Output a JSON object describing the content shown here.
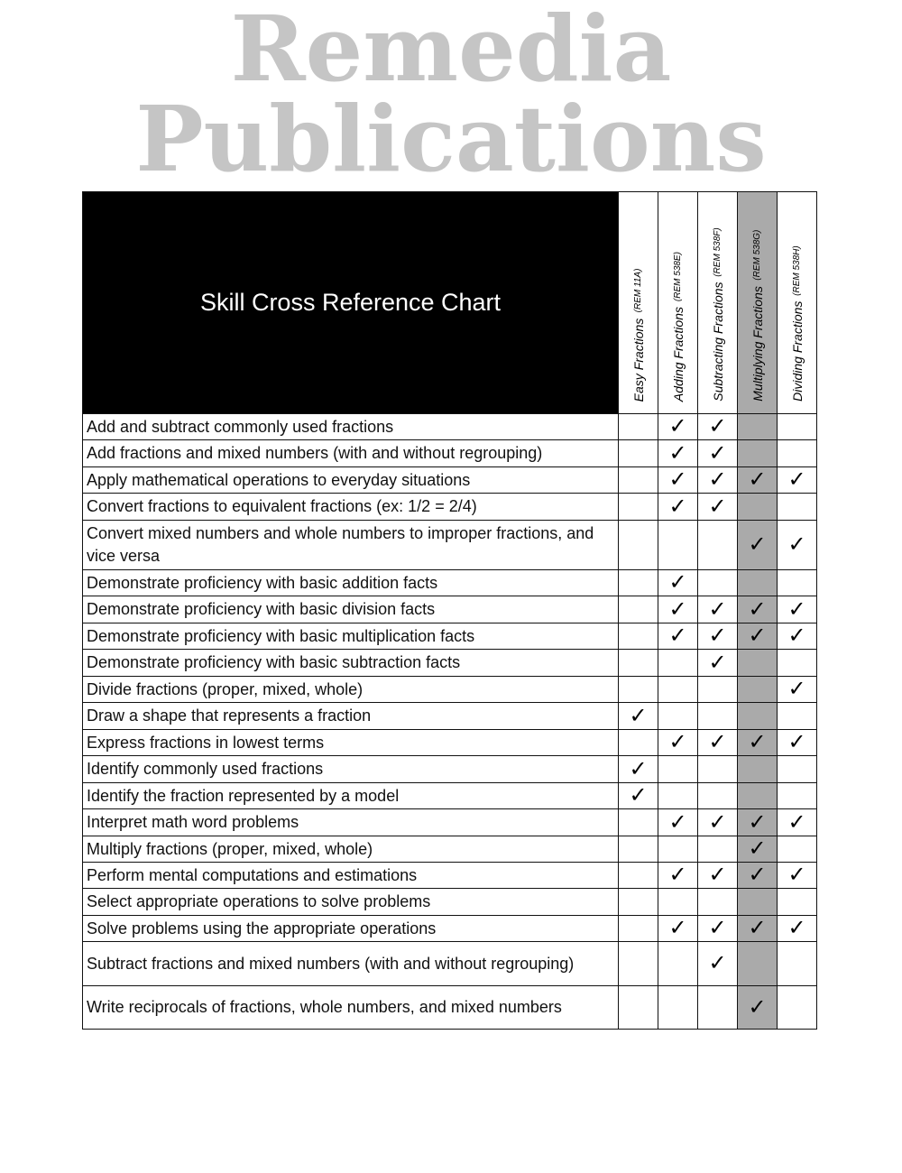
{
  "title": "Skill Cross Reference Chart",
  "watermark": "Remedia Publications",
  "columns": [
    {
      "name": "Easy Fractions",
      "code": "(REM 11A)",
      "shaded": false
    },
    {
      "name": "Adding Fractions",
      "code": "(REM 538E)",
      "shaded": false
    },
    {
      "name": "Subtracting Fractions",
      "code": "(REM 538F)",
      "shaded": false
    },
    {
      "name": "Multiplying Fractions",
      "code": "(REM 538G)",
      "shaded": true
    },
    {
      "name": "Dividing Fractions",
      "code": "(REM 538H)",
      "shaded": false
    }
  ],
  "check_glyph": "✓",
  "colors": {
    "header_bg": "#000000",
    "shade": "#aaaaaa"
  },
  "rows": [
    {
      "skill": "Add and subtract commonly used fractions",
      "checks": [
        0,
        1,
        1,
        0,
        0
      ]
    },
    {
      "skill": "Add fractions and mixed numbers (with and without regrouping)",
      "checks": [
        0,
        1,
        1,
        0,
        0
      ]
    },
    {
      "skill": "Apply mathematical operations to everyday situations",
      "checks": [
        0,
        1,
        1,
        1,
        1
      ]
    },
    {
      "skill": "Convert fractions to equivalent fractions (ex: 1/2 = 2/4)",
      "checks": [
        0,
        1,
        1,
        0,
        0
      ]
    },
    {
      "skill": "Convert mixed numbers and whole numbers to improper fractions, and vice versa",
      "checks": [
        0,
        0,
        0,
        1,
        1
      ]
    },
    {
      "skill": "Demonstrate proficiency with basic addition facts",
      "checks": [
        0,
        1,
        0,
        0,
        0
      ]
    },
    {
      "skill": "Demonstrate proficiency with basic division facts",
      "checks": [
        0,
        1,
        1,
        1,
        1
      ]
    },
    {
      "skill": "Demonstrate proficiency with basic multiplication facts",
      "checks": [
        0,
        1,
        1,
        1,
        1
      ]
    },
    {
      "skill": "Demonstrate proficiency with basic subtraction facts",
      "checks": [
        0,
        0,
        1,
        0,
        0
      ]
    },
    {
      "skill": "Divide fractions (proper, mixed, whole)",
      "checks": [
        0,
        0,
        0,
        0,
        1
      ]
    },
    {
      "skill": "Draw a shape that represents a fraction",
      "checks": [
        1,
        0,
        0,
        0,
        0
      ]
    },
    {
      "skill": "Express fractions in lowest terms",
      "checks": [
        0,
        1,
        1,
        1,
        1
      ]
    },
    {
      "skill": "Identify commonly used fractions",
      "checks": [
        1,
        0,
        0,
        0,
        0
      ]
    },
    {
      "skill": "Identify the fraction represented by a model",
      "checks": [
        1,
        0,
        0,
        0,
        0
      ]
    },
    {
      "skill": "Interpret math word problems",
      "checks": [
        0,
        1,
        1,
        1,
        1
      ]
    },
    {
      "skill": "Multiply fractions (proper, mixed, whole)",
      "checks": [
        0,
        0,
        0,
        1,
        0
      ]
    },
    {
      "skill": "Perform mental computations and estimations",
      "checks": [
        0,
        1,
        1,
        1,
        1
      ]
    },
    {
      "skill": "Select appropriate operations to solve problems",
      "checks": [
        0,
        0,
        0,
        0,
        0
      ]
    },
    {
      "skill": "Solve problems using the appropriate operations",
      "checks": [
        0,
        1,
        1,
        1,
        1
      ]
    },
    {
      "skill": "Subtract fractions and mixed numbers (with and without regrouping)",
      "checks": [
        0,
        0,
        1,
        0,
        0
      ]
    },
    {
      "skill": "Write reciprocals of fractions, whole numbers, and mixed numbers",
      "checks": [
        0,
        0,
        0,
        1,
        0
      ]
    }
  ]
}
